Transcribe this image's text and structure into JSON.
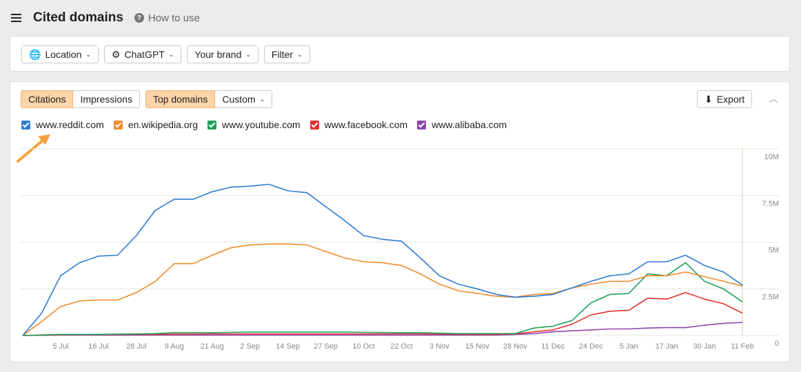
{
  "header": {
    "title": "Cited domains",
    "help": "How to use"
  },
  "filters": [
    "Location",
    "ChatGPT",
    "Your brand",
    "Filter"
  ],
  "metric_tabs": [
    "Citations",
    "Impressions"
  ],
  "domain_tabs": [
    "Top domains",
    "Custom"
  ],
  "export": "Export",
  "chart_data": {
    "type": "line",
    "categories": [
      null,
      null,
      "5 Jul",
      null,
      "16 Jul",
      null,
      "28 Jul",
      null,
      "9 Aug",
      null,
      "21 Aug",
      null,
      "2 Sep",
      null,
      "14 Sep",
      null,
      "27 Sep",
      null,
      "10 Oct",
      null,
      "22 Oct",
      null,
      "3 Nov",
      null,
      "15 Nov",
      null,
      "28 Nov",
      null,
      "11 Dec",
      null,
      "24 Dec",
      null,
      "5 Jan",
      null,
      "17 Jan",
      null,
      "30 Jan",
      null,
      "11 Feb"
    ],
    "series": [
      {
        "name": "www.reddit.com",
        "color": "#2f7bd1",
        "values": [
          0,
          1200000,
          3200000,
          3900000,
          4250000,
          4300000,
          5350000,
          6700000,
          7300000,
          7300000,
          7700000,
          7950000,
          8000000,
          8100000,
          7750000,
          7650000,
          6900000,
          6150000,
          5350000,
          5150000,
          5050000,
          4150000,
          3200000,
          2750000,
          2500000,
          2200000,
          2050000,
          2100000,
          2200000,
          2550000,
          2900000,
          3200000,
          3300000,
          3950000,
          3950000,
          4300000,
          3750000,
          3400000,
          2700000
        ]
      },
      {
        "name": "en.wikipedia.org",
        "color": "#f08a2a",
        "values": [
          0,
          750000,
          1550000,
          1850000,
          1900000,
          1900000,
          2300000,
          2900000,
          3850000,
          3850000,
          4300000,
          4700000,
          4850000,
          4900000,
          4900000,
          4850000,
          4500000,
          4150000,
          3950000,
          3900000,
          3750000,
          3300000,
          2750000,
          2400000,
          2250000,
          2100000,
          2050000,
          2200000,
          2250000,
          2550000,
          2750000,
          2900000,
          2900000,
          3200000,
          3200000,
          3400000,
          3150000,
          2900000,
          2650000
        ]
      },
      {
        "name": "www.youtube.com",
        "color": "#1e9e5a",
        "values": [
          0,
          30000,
          50000,
          50000,
          60000,
          70000,
          80000,
          100000,
          150000,
          150000,
          150000,
          170000,
          180000,
          180000,
          180000,
          180000,
          180000,
          180000,
          170000,
          160000,
          150000,
          150000,
          120000,
          100000,
          100000,
          100000,
          100000,
          400000,
          500000,
          800000,
          1750000,
          2200000,
          2250000,
          3300000,
          3200000,
          3900000,
          2900000,
          2500000,
          1800000
        ]
      },
      {
        "name": "www.facebook.com",
        "color": "#e03131",
        "values": [
          0,
          20000,
          40000,
          40000,
          50000,
          50000,
          60000,
          60000,
          70000,
          70000,
          80000,
          80000,
          80000,
          80000,
          80000,
          80000,
          80000,
          80000,
          80000,
          80000,
          80000,
          80000,
          70000,
          70000,
          60000,
          60000,
          80000,
          200000,
          300000,
          600000,
          1100000,
          1300000,
          1350000,
          2000000,
          1950000,
          2300000,
          1950000,
          1700000,
          1200000
        ]
      },
      {
        "name": "www.alibaba.com",
        "color": "#8e44ad",
        "values": [
          0,
          10000,
          20000,
          20000,
          20000,
          20000,
          20000,
          20000,
          20000,
          20000,
          20000,
          20000,
          20000,
          20000,
          20000,
          20000,
          20000,
          20000,
          20000,
          20000,
          20000,
          20000,
          20000,
          20000,
          20000,
          20000,
          50000,
          100000,
          200000,
          250000,
          300000,
          350000,
          350000,
          400000,
          420000,
          420000,
          550000,
          650000,
          700000
        ]
      }
    ],
    "ylim": [
      0,
      10000000
    ],
    "yticks": [
      0,
      {
        "value": 2500000,
        "label": "2.5M"
      },
      {
        "value": 5000000,
        "label": "5M"
      },
      {
        "value": 7500000,
        "label": "7.5M"
      },
      {
        "value": 10000000,
        "label": "10M"
      }
    ],
    "grid": true
  }
}
